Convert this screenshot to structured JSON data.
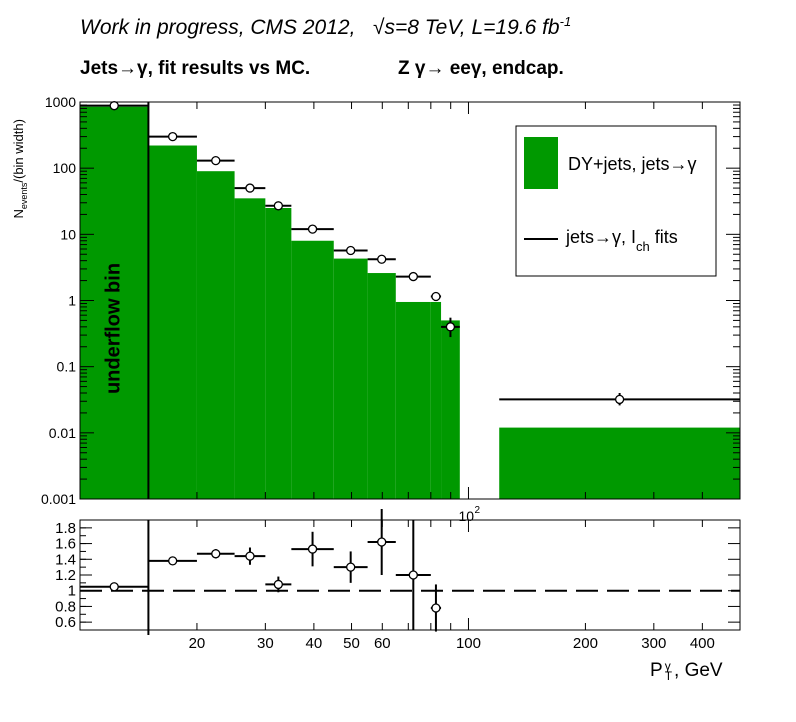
{
  "header": {
    "line1": "Work in progress, CMS 2012,",
    "sqrt_s": "√s=8 TeV, L=19.6 fb",
    "lumi_exp": "-1",
    "line2_left": "Jets→γ, fit results vs MC.",
    "line2_right": "Z  γ→ eeγ, endcap."
  },
  "underflow_label": "underflow bin",
  "chart_data": [
    {
      "type": "bar",
      "panel": "main",
      "scale": "log-log",
      "ylabel": "N_events/(bin width)",
      "ylim": [
        0.001,
        1000
      ],
      "xlim": [
        10,
        500
      ],
      "yticks": [
        "1000",
        "100",
        "10",
        "1",
        "0.1",
        "0.01",
        "0.001"
      ],
      "xtick_label": "10",
      "xtick_exp": "2",
      "legend": {
        "placement": "top-right",
        "entries": [
          {
            "label": "DY+jets, jets→γ",
            "kind": "fill",
            "color": "#009900"
          },
          {
            "label": "jets→γ, I",
            "sub": "ch",
            "suffix": " fits",
            "kind": "line",
            "color": "#000000"
          }
        ]
      },
      "bins": [
        {
          "lo": 10,
          "hi": 15,
          "mc": 850,
          "data": 880,
          "underflow": true
        },
        {
          "lo": 15,
          "hi": 20,
          "mc": 220,
          "data": 300
        },
        {
          "lo": 20,
          "hi": 25,
          "mc": 90,
          "data": 130
        },
        {
          "lo": 25,
          "hi": 30,
          "mc": 35,
          "data": 50
        },
        {
          "lo": 30,
          "hi": 35,
          "mc": 25,
          "data": 27
        },
        {
          "lo": 35,
          "hi": 45,
          "mc": 8,
          "data": 12
        },
        {
          "lo": 45,
          "hi": 55,
          "mc": 4.3,
          "data": 5.7
        },
        {
          "lo": 55,
          "hi": 65,
          "mc": 2.6,
          "data": 4.2
        },
        {
          "lo": 65,
          "hi": 80,
          "mc": 0.95,
          "data": 2.3
        },
        {
          "lo": 80,
          "hi": 85,
          "mc": 0.95,
          "data": 1.15
        },
        {
          "lo": 85,
          "hi": 95,
          "mc": 0.5,
          "data": 0.4,
          "err": [
            0.28,
            0.55
          ]
        },
        {
          "lo": 120,
          "hi": 500,
          "mc": 0.012,
          "data": 0.032,
          "err": [
            0.026,
            0.04
          ]
        }
      ]
    },
    {
      "type": "scatter",
      "panel": "ratio",
      "ylim": [
        0.5,
        1.9
      ],
      "yticks": [
        "1.8",
        "1.6",
        "1.4",
        "1.2",
        "1",
        "0.8",
        "0.6"
      ],
      "xticks": [
        "20",
        "30",
        "40",
        "50",
        "60",
        "100",
        "200",
        "300",
        "400"
      ],
      "xlabel": "P",
      "xlabel_sup": "γ",
      "xlabel_sub": "T",
      "xlabel_suffix": ", GeV",
      "reference_line": 1.0,
      "points": [
        {
          "lo": 10,
          "hi": 15,
          "y": 1.05,
          "err": 0.0
        },
        {
          "lo": 15,
          "hi": 20,
          "y": 1.38,
          "err": 0.04
        },
        {
          "lo": 20,
          "hi": 25,
          "y": 1.47,
          "err": 0.06
        },
        {
          "lo": 25,
          "hi": 30,
          "y": 1.44,
          "err": 0.11
        },
        {
          "lo": 30,
          "hi": 35,
          "y": 1.08,
          "err": 0.1
        },
        {
          "lo": 35,
          "hi": 45,
          "y": 1.53,
          "err": 0.22
        },
        {
          "lo": 45,
          "hi": 55,
          "y": 1.3,
          "err": 0.2
        },
        {
          "lo": 55,
          "hi": 65,
          "y": 1.62,
          "err": 0.42
        },
        {
          "lo": 65,
          "hi": 80,
          "y": 1.2,
          "err": 0.7
        },
        {
          "lo": 80,
          "hi": 85,
          "y": 0.78,
          "err": 0.3
        }
      ]
    }
  ]
}
